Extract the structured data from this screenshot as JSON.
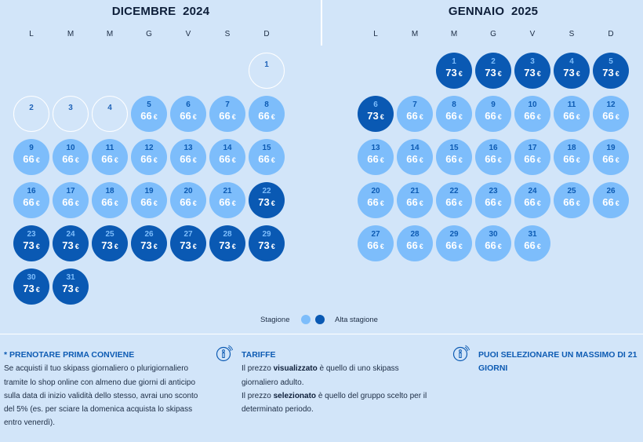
{
  "weekdays": [
    "L",
    "M",
    "M",
    "G",
    "V",
    "S",
    "D"
  ],
  "months": [
    {
      "title": "DICEMBRE  2024",
      "days": [
        {
          "d": "1",
          "type": "empty"
        },
        {
          "d": "2",
          "type": "empty"
        },
        {
          "d": "3",
          "type": "empty"
        },
        {
          "d": "4",
          "type": "empty"
        },
        {
          "d": "5",
          "type": "low",
          "price": "66",
          "cur": "€"
        },
        {
          "d": "6",
          "type": "low",
          "price": "66",
          "cur": "€"
        },
        {
          "d": "7",
          "type": "low",
          "price": "66",
          "cur": "€"
        },
        {
          "d": "8",
          "type": "low",
          "price": "66",
          "cur": "€"
        },
        {
          "d": "9",
          "type": "low",
          "price": "66",
          "cur": "€"
        },
        {
          "d": "10",
          "type": "low",
          "price": "66",
          "cur": "€"
        },
        {
          "d": "11",
          "type": "low",
          "price": "66",
          "cur": "€"
        },
        {
          "d": "12",
          "type": "low",
          "price": "66",
          "cur": "€"
        },
        {
          "d": "13",
          "type": "low",
          "price": "66",
          "cur": "€"
        },
        {
          "d": "14",
          "type": "low",
          "price": "66",
          "cur": "€"
        },
        {
          "d": "15",
          "type": "low",
          "price": "66",
          "cur": "€"
        },
        {
          "d": "16",
          "type": "low",
          "price": "66",
          "cur": "€"
        },
        {
          "d": "17",
          "type": "low",
          "price": "66",
          "cur": "€"
        },
        {
          "d": "18",
          "type": "low",
          "price": "66",
          "cur": "€"
        },
        {
          "d": "19",
          "type": "low",
          "price": "66",
          "cur": "€"
        },
        {
          "d": "20",
          "type": "low",
          "price": "66",
          "cur": "€"
        },
        {
          "d": "21",
          "type": "low",
          "price": "66",
          "cur": "€"
        },
        {
          "d": "22",
          "type": "high",
          "price": "73",
          "cur": "€"
        },
        {
          "d": "23",
          "type": "high",
          "price": "73",
          "cur": "€"
        },
        {
          "d": "24",
          "type": "high",
          "price": "73",
          "cur": "€"
        },
        {
          "d": "25",
          "type": "high",
          "price": "73",
          "cur": "€"
        },
        {
          "d": "26",
          "type": "high",
          "price": "73",
          "cur": "€"
        },
        {
          "d": "27",
          "type": "high",
          "price": "73",
          "cur": "€"
        },
        {
          "d": "28",
          "type": "high",
          "price": "73",
          "cur": "€"
        },
        {
          "d": "29",
          "type": "high",
          "price": "73",
          "cur": "€"
        },
        {
          "d": "30",
          "type": "high",
          "price": "73",
          "cur": "€"
        },
        {
          "d": "31",
          "type": "high",
          "price": "73",
          "cur": "€"
        }
      ]
    },
    {
      "title": "GENNAIO  2025",
      "days": [
        {
          "d": "1",
          "type": "high",
          "price": "73",
          "cur": "€"
        },
        {
          "d": "2",
          "type": "high",
          "price": "73",
          "cur": "€"
        },
        {
          "d": "3",
          "type": "high",
          "price": "73",
          "cur": "€"
        },
        {
          "d": "4",
          "type": "high",
          "price": "73",
          "cur": "€"
        },
        {
          "d": "5",
          "type": "high",
          "price": "73",
          "cur": "€"
        },
        {
          "d": "6",
          "type": "high",
          "price": "73",
          "cur": "€"
        },
        {
          "d": "7",
          "type": "low",
          "price": "66",
          "cur": "€"
        },
        {
          "d": "8",
          "type": "low",
          "price": "66",
          "cur": "€"
        },
        {
          "d": "9",
          "type": "low",
          "price": "66",
          "cur": "€"
        },
        {
          "d": "10",
          "type": "low",
          "price": "66",
          "cur": "€"
        },
        {
          "d": "11",
          "type": "low",
          "price": "66",
          "cur": "€"
        },
        {
          "d": "12",
          "type": "low",
          "price": "66",
          "cur": "€"
        },
        {
          "d": "13",
          "type": "low",
          "price": "66",
          "cur": "€"
        },
        {
          "d": "14",
          "type": "low",
          "price": "66",
          "cur": "€"
        },
        {
          "d": "15",
          "type": "low",
          "price": "66",
          "cur": "€"
        },
        {
          "d": "16",
          "type": "low",
          "price": "66",
          "cur": "€"
        },
        {
          "d": "17",
          "type": "low",
          "price": "66",
          "cur": "€"
        },
        {
          "d": "18",
          "type": "low",
          "price": "66",
          "cur": "€"
        },
        {
          "d": "19",
          "type": "low",
          "price": "66",
          "cur": "€"
        },
        {
          "d": "20",
          "type": "low",
          "price": "66",
          "cur": "€"
        },
        {
          "d": "21",
          "type": "low",
          "price": "66",
          "cur": "€"
        },
        {
          "d": "22",
          "type": "low",
          "price": "66",
          "cur": "€"
        },
        {
          "d": "23",
          "type": "low",
          "price": "66",
          "cur": "€"
        },
        {
          "d": "24",
          "type": "low",
          "price": "66",
          "cur": "€"
        },
        {
          "d": "25",
          "type": "low",
          "price": "66",
          "cur": "€"
        },
        {
          "d": "26",
          "type": "low",
          "price": "66",
          "cur": "€"
        },
        {
          "d": "27",
          "type": "low",
          "price": "66",
          "cur": "€"
        },
        {
          "d": "28",
          "type": "low",
          "price": "66",
          "cur": "€"
        },
        {
          "d": "29",
          "type": "low",
          "price": "66",
          "cur": "€"
        },
        {
          "d": "30",
          "type": "low",
          "price": "66",
          "cur": "€"
        },
        {
          "d": "31",
          "type": "low",
          "price": "66",
          "cur": "€"
        }
      ]
    }
  ],
  "legend": {
    "season": "Stagione",
    "high_season": "Alta stagione",
    "season_color": "#7dbdfb",
    "high_season_color": "#0a59b3"
  },
  "info": {
    "early": {
      "title": "* PRENOTARE PRIMA CONVIENE",
      "text": "Se acquisti il tuo skipass giornaliero o plurigiornaliero tramite lo shop online con almeno due giorni di anticipo sulla data di inizio validità dello stesso, avrai uno sconto del 5% (es. per sciare la domenica acquista lo skipass entro venerdì)."
    },
    "tariffe": {
      "title": "TARIFFE",
      "l1_pre": "Il prezzo ",
      "l1_bold": "visualizzato",
      "l1_post": " è quello di uno skipass giornaliero adulto.",
      "l2_pre": "Il prezzo ",
      "l2_bold": "selezionato",
      "l2_post": " è quello del gruppo scelto per il determinato periodo."
    },
    "max": {
      "title": "PUOI SELEZIONARE UN MASSIMO DI 21 GIORNI"
    }
  }
}
